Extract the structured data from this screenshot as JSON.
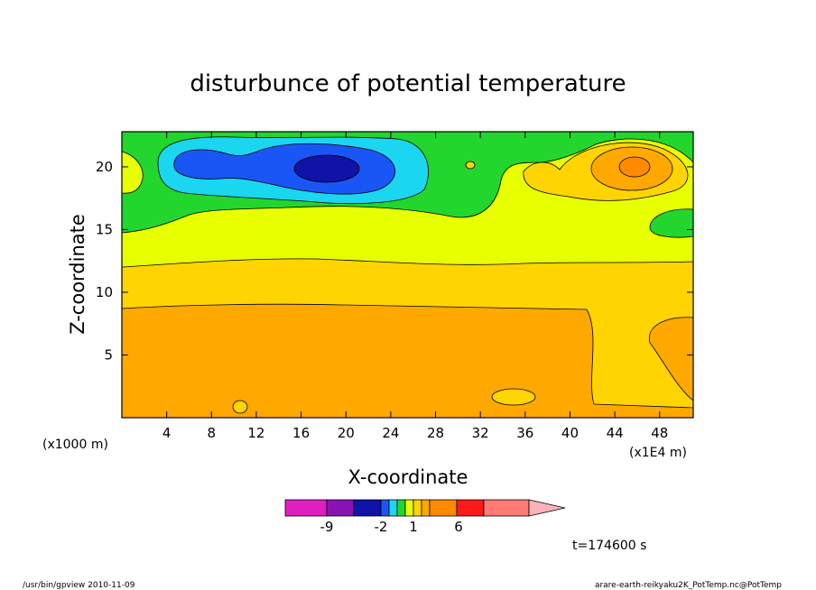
{
  "chart_data": {
    "type": "contour",
    "title": "disturbunce of potential temperature",
    "xlabel": "X-coordinate",
    "ylabel": "Z-coordinate",
    "x_unit_label": "(x1000 m)",
    "x_scale_label": "(x1E4 m)",
    "xlim": [
      0,
      51
    ],
    "ylim": [
      0,
      22.8
    ],
    "x_ticks": [
      4,
      8,
      12,
      16,
      20,
      24,
      28,
      32,
      36,
      40,
      44,
      48
    ],
    "y_ticks": [
      5,
      10,
      15,
      20
    ],
    "colorbar": {
      "colors": [
        "#e11ec2",
        "#8a12b5",
        "#1012a8",
        "#1a55f5",
        "#1bd6f0",
        "#22d62e",
        "#e8ff00",
        "#ffd400",
        "#ffa800",
        "#ff8a00",
        "#ff1a1a",
        "#ff7b73",
        "#ffb3b8"
      ],
      "labels": [
        {
          "text": "-9",
          "at": -9
        },
        {
          "text": "-2",
          "at": -2
        },
        {
          "text": "1",
          "at": 1
        },
        {
          "text": "6",
          "at": 6
        }
      ]
    },
    "field_regions": [
      {
        "level": 0,
        "color": "#22d62e",
        "desc": "upper band"
      },
      {
        "level": 1,
        "color": "#e8ff00",
        "desc": "z 12-17"
      },
      {
        "level": 2,
        "color": "#ffd400",
        "desc": "z 9-12"
      },
      {
        "level": 3,
        "color": "#ffa800",
        "desc": "z 0-9"
      },
      {
        "level": -1,
        "color": "#1bd6f0",
        "desc": "cold anomaly x 3-27"
      },
      {
        "level": -2,
        "color": "#1a55f5",
        "desc": "cold core"
      },
      {
        "level": -3,
        "color": "#1012a8",
        "desc": "cold center x 19"
      },
      {
        "level": 4,
        "color": "#ff8a00",
        "desc": "warm center x 46"
      }
    ]
  },
  "time_label": "t=174600 s",
  "footer": {
    "left": "/usr/bin/gpview   2010-11-09",
    "right": "arare-earth-reikyaku2K_PotTemp.nc@PotTemp"
  }
}
